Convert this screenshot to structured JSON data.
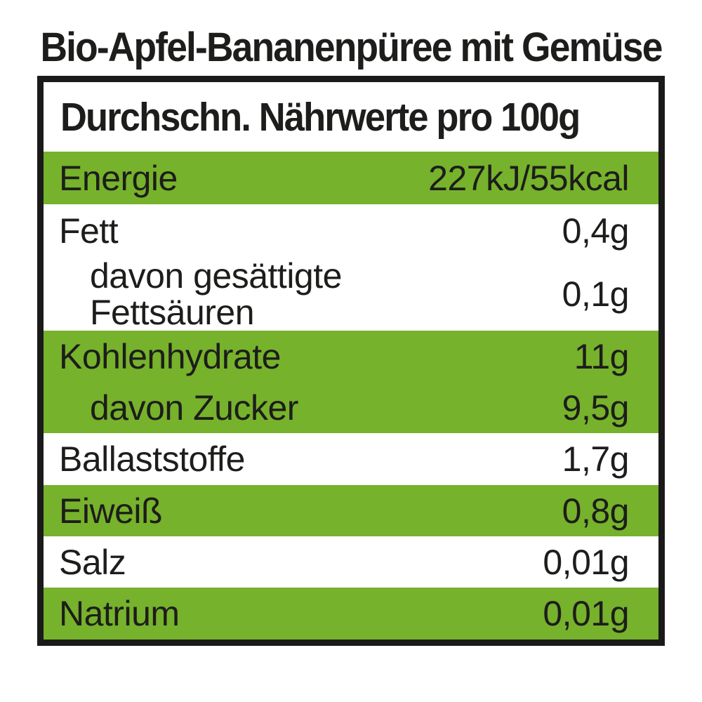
{
  "title": "Bio-Apfel-Bananenpüree mit Gemüse",
  "colors": {
    "green": "#76b22b",
    "text": "#1d1d1b",
    "border": "#1a1a1a",
    "background": "#ffffff"
  },
  "table": {
    "header": "Durchschn. Nährwerte pro 100g",
    "rows": [
      {
        "label": "Energie",
        "value": "227kJ/55kcal",
        "highlight": true,
        "indent": false
      },
      {
        "label": "Fett",
        "value": "0,4g",
        "highlight": false,
        "indent": false
      },
      {
        "label": "davon gesättigte Fettsäuren",
        "value": "0,1g",
        "highlight": false,
        "indent": true
      },
      {
        "label": "Kohlenhydrate",
        "value": "11g",
        "highlight": true,
        "indent": false
      },
      {
        "label": "davon Zucker",
        "value": "9,5g",
        "highlight": true,
        "indent": true
      },
      {
        "label": "Ballaststoffe",
        "value": "1,7g",
        "highlight": false,
        "indent": false
      },
      {
        "label": "Eiweiß",
        "value": "0,8g",
        "highlight": true,
        "indent": false
      },
      {
        "label": "Salz",
        "value": "0,01g",
        "highlight": false,
        "indent": false
      },
      {
        "label": "Natrium",
        "value": "0,01g",
        "highlight": true,
        "indent": false
      }
    ]
  }
}
